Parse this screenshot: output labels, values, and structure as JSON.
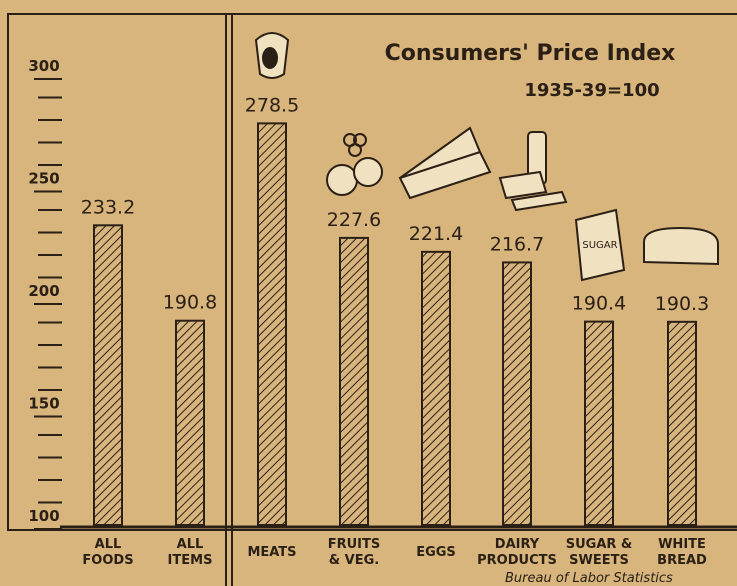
{
  "chart_data": {
    "type": "bar",
    "title": "Consumers' Price Index",
    "subtitle": "1935-39=100",
    "source": "Bureau of Labor Statistics",
    "categories": [
      "ALL\nFOODS",
      "ALL\nITEMS",
      "MEATS",
      "FRUITS\n& VEG.",
      "EGGS",
      "DAIRY\nPRODUCTS",
      "SUGAR &\nSWEETS",
      "WHITE\nBREAD"
    ],
    "values": [
      233.2,
      190.8,
      278.5,
      227.6,
      221.4,
      216.7,
      190.4,
      190.3
    ],
    "color": "#2b2016",
    "ylim": [
      100,
      300
    ],
    "yticks": [
      100,
      150,
      200,
      250,
      300
    ],
    "yticks_minor": [
      110,
      120,
      130,
      140,
      160,
      170,
      180,
      190,
      210,
      220,
      230,
      240,
      260,
      270,
      280,
      290
    ]
  }
}
